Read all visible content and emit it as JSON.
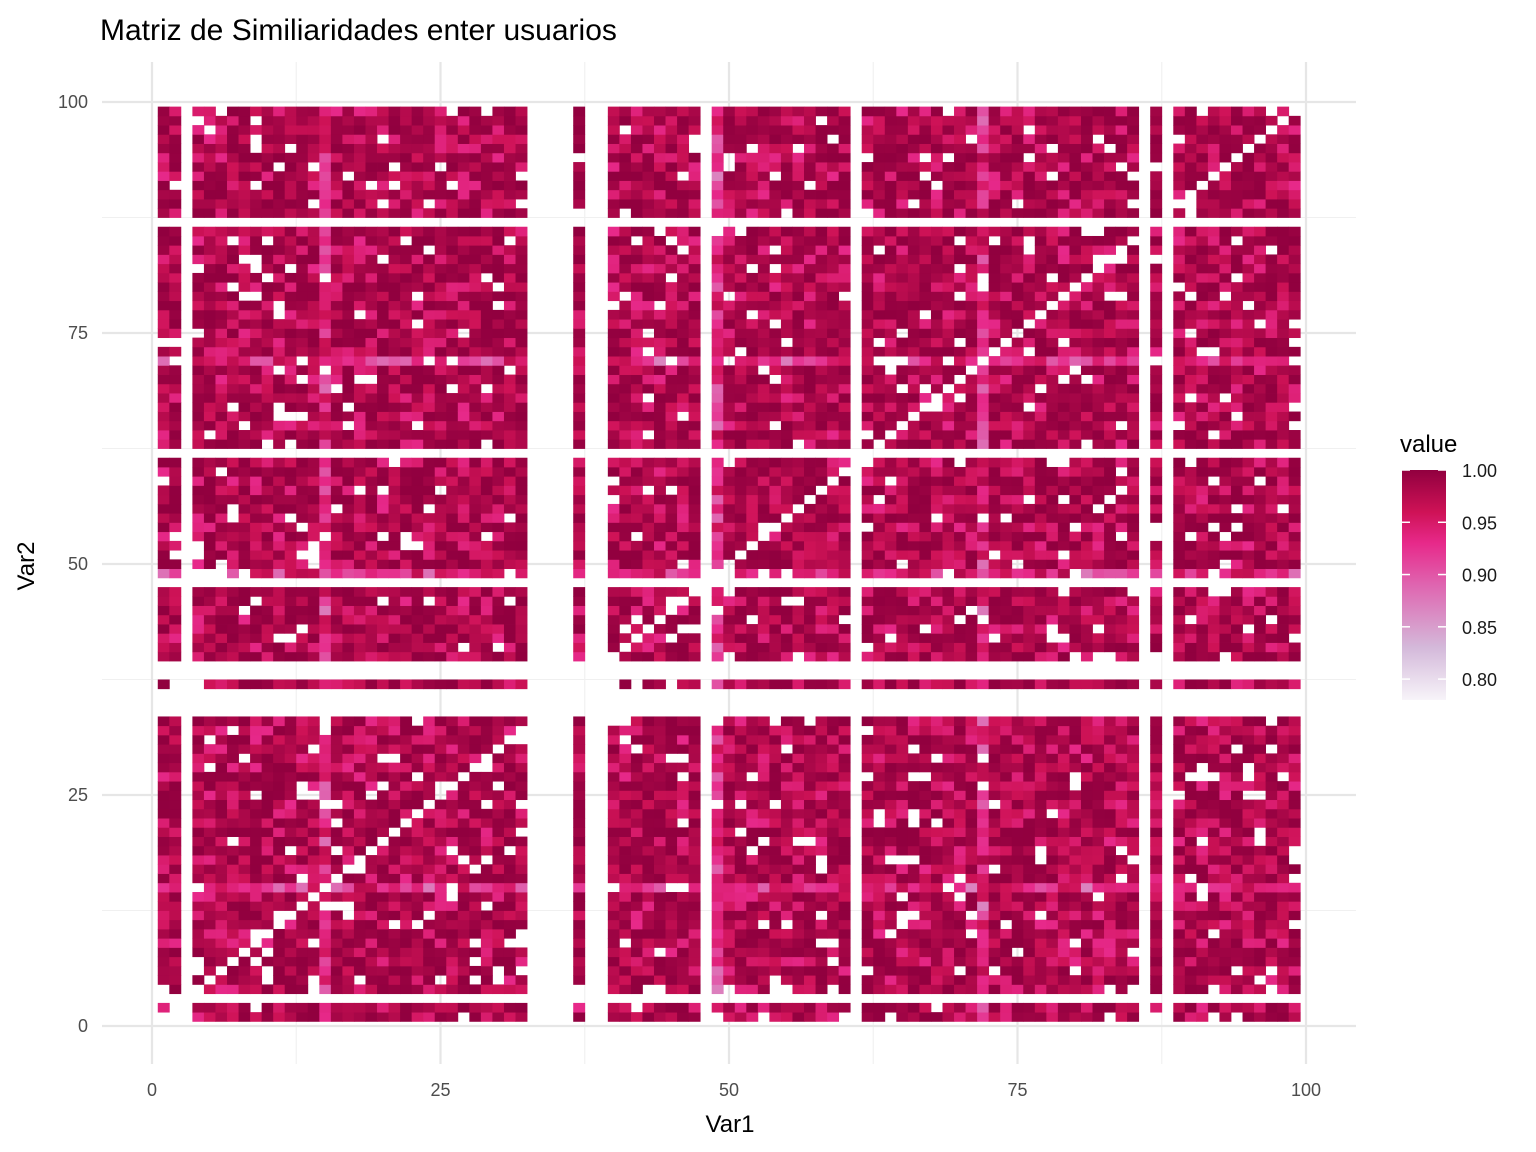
{
  "chart_data": {
    "type": "heatmap",
    "title": "Matriz de Similiaridades enter usuarios",
    "xlabel": "Var1",
    "ylabel": "Var2",
    "xlim": [
      0,
      100
    ],
    "ylim": [
      0,
      100
    ],
    "x_ticks": [
      0,
      25,
      50,
      75,
      100
    ],
    "y_ticks": [
      0,
      25,
      50,
      75,
      100
    ],
    "x_tick_labels": [
      "0",
      "25",
      "50",
      "75",
      "100"
    ],
    "y_tick_labels": [
      "0",
      "25",
      "50",
      "75",
      "100"
    ],
    "grid": true,
    "n_users": 99,
    "cell_range": [
      1,
      99
    ],
    "value_range": [
      0.78,
      1.0
    ],
    "empty_rows": [
      3,
      34,
      35,
      36,
      38,
      39,
      48,
      62,
      87
    ],
    "empty_cols": [
      3,
      33,
      34,
      35,
      36,
      38,
      39,
      48,
      61,
      86,
      88
    ],
    "diagonal_empty": true,
    "low_value_rows": [
      15,
      49,
      72
    ],
    "low_value_cols": [
      15,
      49,
      72
    ],
    "legend": {
      "title": "value",
      "position": "right",
      "ticks": [
        1.0,
        0.95,
        0.9,
        0.85,
        0.8
      ],
      "tick_labels": [
        "1.00",
        "0.95",
        "0.90",
        "0.85",
        "0.80"
      ]
    },
    "colors": {
      "scale": [
        "#f7f4f9",
        "#d4b9da",
        "#df65b0",
        "#e7298a",
        "#ce1256",
        "#91003f"
      ],
      "scale_values": [
        0.78,
        0.83,
        0.89,
        0.93,
        0.96,
        1.0
      ],
      "grid": "#e6e6e6",
      "background": "#ffffff"
    }
  }
}
